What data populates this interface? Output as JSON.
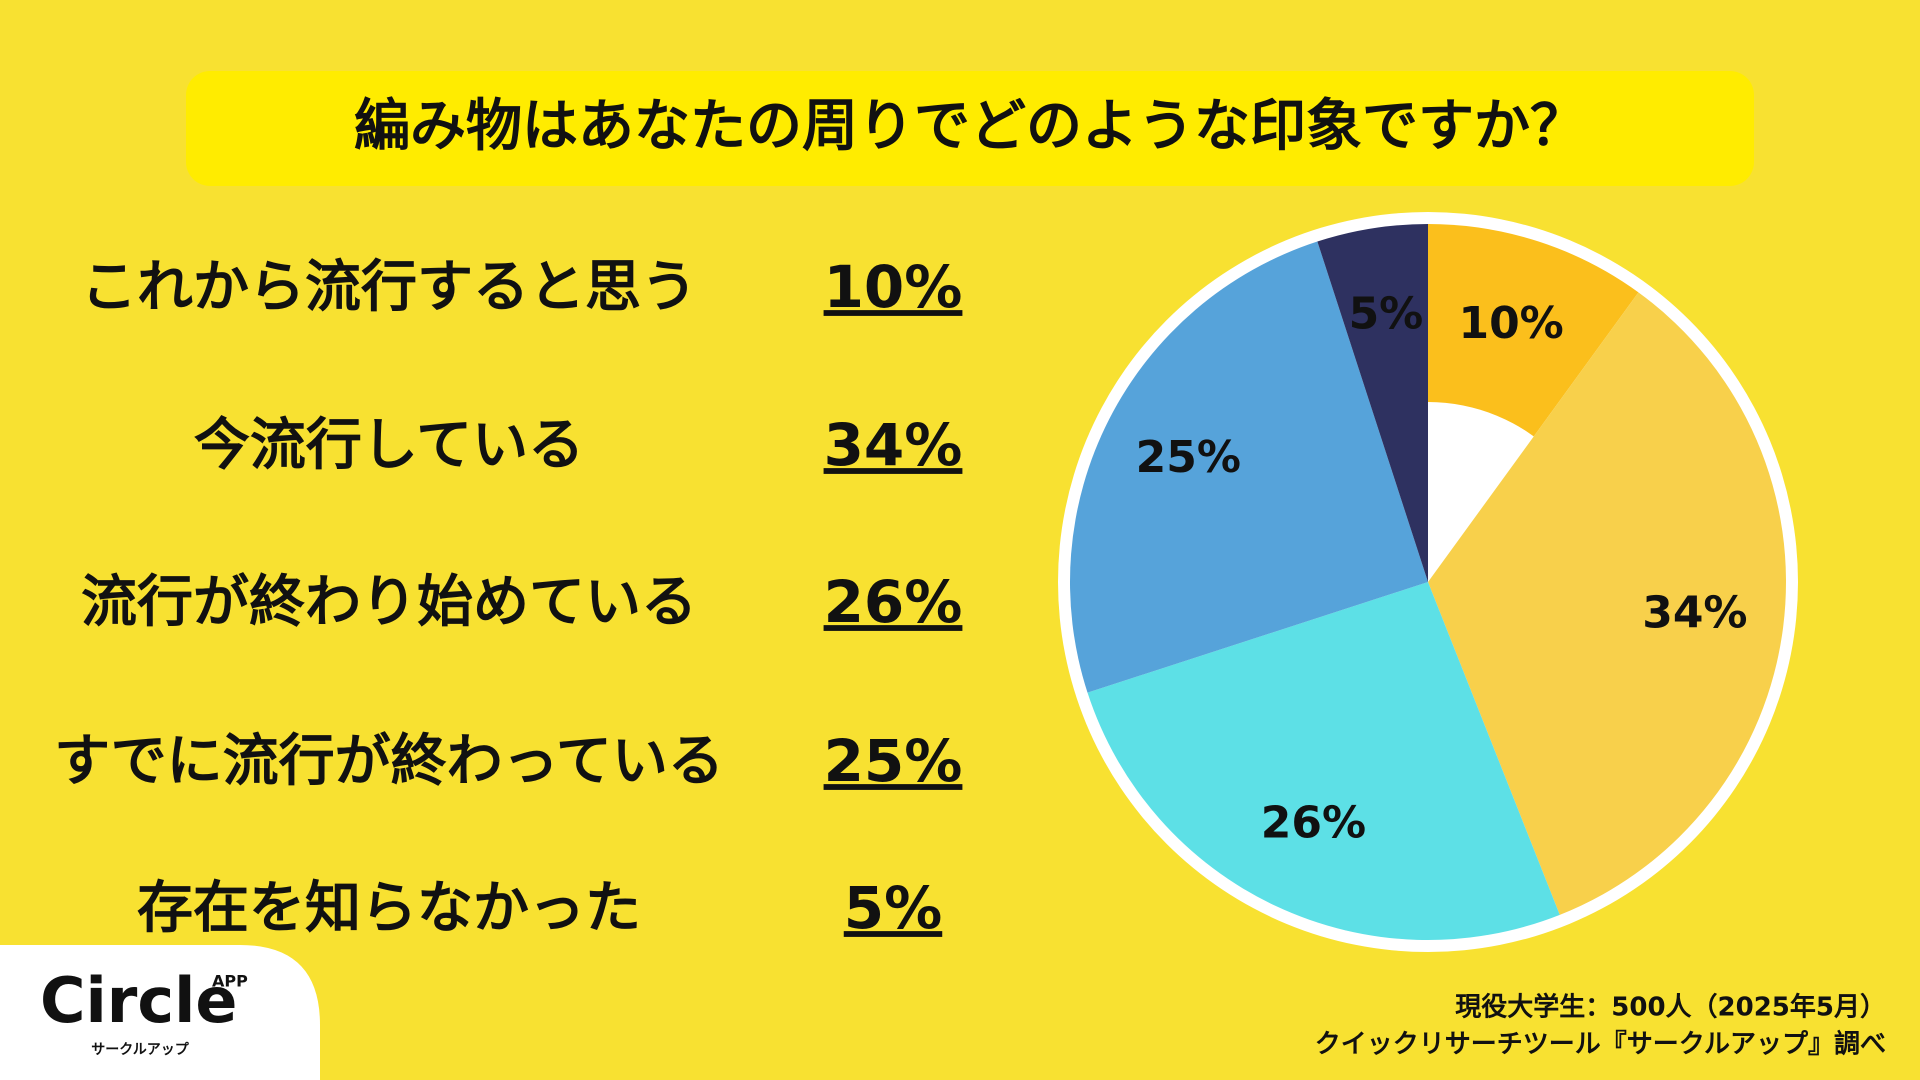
{
  "chart_data": {
    "type": "pie",
    "title": "編み物はあなたの周りでどのような印象ですか？",
    "categories": [
      "これから流行すると思う",
      "今流行している",
      "流行が終わり始めている",
      "すでに流行が終わっている",
      "存在を知らなかった"
    ],
    "values": [
      10,
      34,
      26,
      25,
      5
    ],
    "value_labels": [
      "10%",
      "34%",
      "26%",
      "25%",
      "5%"
    ],
    "colors": [
      "#fbbf1c",
      "#f8d04b",
      "#5de0e6",
      "#56a3da",
      "#2e3160"
    ]
  },
  "footer": {
    "source": [
      "現役大学生：500人（2025年5月）",
      "クイックリサーチツール『サークルアップ』調べ"
    ]
  },
  "logo": {
    "name": "Circle",
    "badge": "APP",
    "sub": "サークルアップ"
  }
}
